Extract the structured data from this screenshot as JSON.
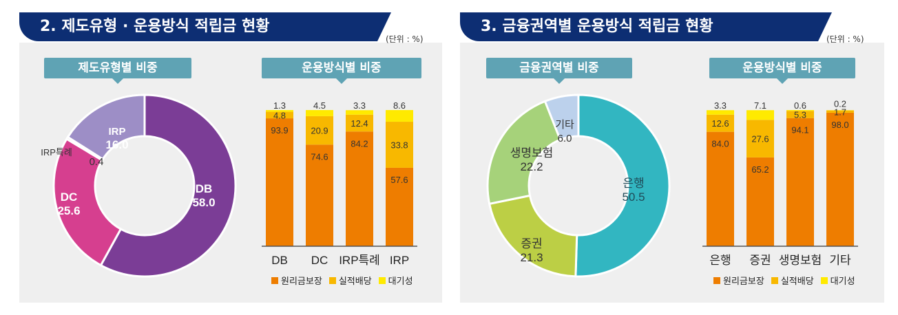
{
  "left": {
    "title": "2. 제도유형 · 운용방식 적립금 현황",
    "unit": "(단위 : %)",
    "donut_pill": "제도유형별 비중",
    "bar_pill": "운용방식별 비중"
  },
  "right": {
    "title": "3. 금융권역별 운용방식 적립금 현황",
    "unit": "(단위 : %)",
    "donut_pill": "금융권역별 비중",
    "bar_pill": "운용방식별 비중"
  },
  "legend": [
    "원리금보장",
    "실적배당",
    "대기성"
  ],
  "colors": {
    "원리금보장": "#ee7d00",
    "실적배당": "#f8b800",
    "대기성": "#ffea00"
  },
  "chart_data": [
    {
      "type": "pie",
      "title": "제도유형별 비중",
      "slices": [
        {
          "label": "DB",
          "value": 58.0,
          "color": "#7b3d96"
        },
        {
          "label": "DC",
          "value": 25.6,
          "color": "#d63f8f"
        },
        {
          "label": "IRP특례",
          "value": 0.4,
          "color": "#b3a4cf"
        },
        {
          "label": "IRP",
          "value": 16.0,
          "color": "#9d8ec6"
        }
      ]
    },
    {
      "type": "bar",
      "title": "운용방식별 비중",
      "stacked": true,
      "categories": [
        "DB",
        "DC",
        "IRP특례",
        "IRP"
      ],
      "series": [
        {
          "name": "원리금보장",
          "values": [
            93.9,
            74.6,
            84.2,
            57.6
          ]
        },
        {
          "name": "실적배당",
          "values": [
            4.8,
            20.9,
            12.4,
            33.8
          ]
        },
        {
          "name": "대기성",
          "values": [
            1.3,
            4.5,
            3.3,
            8.6
          ]
        }
      ],
      "ylim": [
        0,
        100
      ]
    },
    {
      "type": "pie",
      "title": "금융권역별 비중",
      "slices": [
        {
          "label": "은행",
          "value": 50.5,
          "color": "#32b6c1"
        },
        {
          "label": "증권",
          "value": 21.3,
          "color": "#bccf45"
        },
        {
          "label": "생명보험",
          "value": 22.2,
          "color": "#a6d27a"
        },
        {
          "label": "기타",
          "value": 6.0,
          "color": "#bcd1ec"
        }
      ]
    },
    {
      "type": "bar",
      "title": "운용방식별 비중",
      "stacked": true,
      "categories": [
        "은행",
        "증권",
        "생명보험",
        "기타"
      ],
      "series": [
        {
          "name": "원리금보장",
          "values": [
            84.0,
            65.2,
            94.1,
            98.0
          ]
        },
        {
          "name": "실적배당",
          "values": [
            12.6,
            27.6,
            5.3,
            1.7
          ]
        },
        {
          "name": "대기성",
          "values": [
            3.3,
            7.1,
            0.6,
            0.2
          ]
        }
      ],
      "ylim": [
        0,
        100
      ]
    }
  ]
}
